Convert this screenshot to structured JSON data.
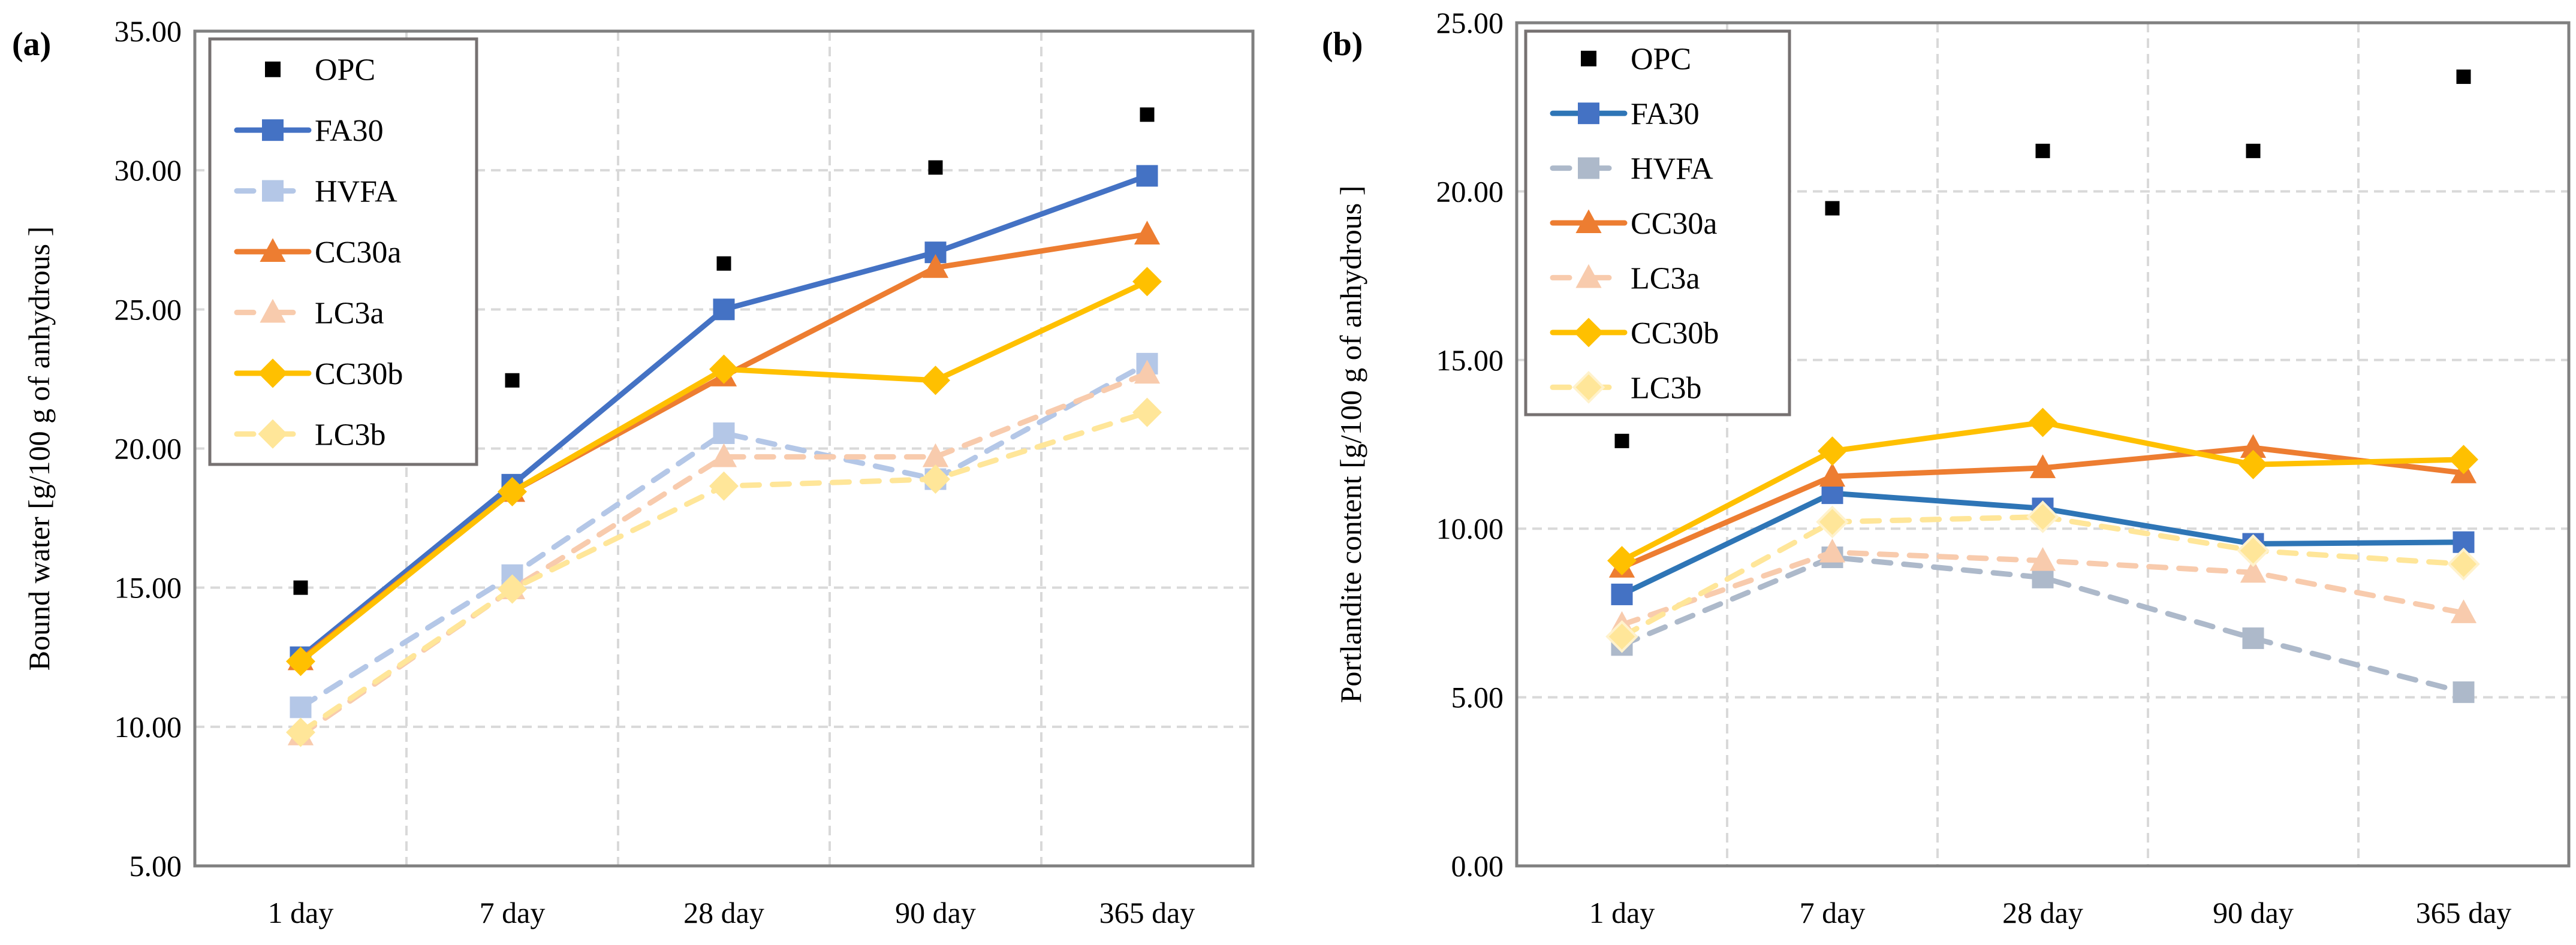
{
  "chart_data": [
    {
      "type": "line",
      "panel_label": "(a)",
      "title": "",
      "xlabel": "",
      "ylabel": "Bound water [g/100  g of anhydrous ]",
      "ylim": [
        5,
        35
      ],
      "yticks": [
        5,
        10,
        15,
        20,
        25,
        30,
        35
      ],
      "ytick_labels": [
        "5.00",
        "10.00",
        "15.00",
        "20.00",
        "25.00",
        "30.00",
        "35.00"
      ],
      "grid": true,
      "legend_position": "top-left",
      "categories": [
        "1 day",
        "7 day",
        "28 day",
        "90 day",
        "365 day"
      ],
      "series": [
        {
          "name": "OPC",
          "values": [
            15.0,
            22.45,
            26.65,
            30.1,
            32.0
          ],
          "color": "#000000",
          "marker": "square",
          "line": "none"
        },
        {
          "name": "FA30",
          "values": [
            12.5,
            18.7,
            25.0,
            27.05,
            29.8
          ],
          "color": "#4472C4",
          "marker": "square",
          "line": "solid"
        },
        {
          "name": "HVFA",
          "values": [
            10.7,
            15.45,
            20.55,
            18.9,
            23.05
          ],
          "color": "#B4C7E7",
          "marker": "square",
          "line": "dashed"
        },
        {
          "name": "CC30a",
          "values": [
            12.4,
            18.45,
            22.6,
            26.5,
            27.7
          ],
          "color": "#ED7D31",
          "marker": "triangle",
          "line": "solid"
        },
        {
          "name": "LC3a",
          "values": [
            9.7,
            14.95,
            19.7,
            19.7,
            22.7
          ],
          "color": "#F8CBAD",
          "marker": "triangle",
          "line": "dashed"
        },
        {
          "name": "CC30b",
          "values": [
            12.35,
            18.45,
            22.85,
            22.45,
            26.0
          ],
          "color": "#FFC000",
          "marker": "diamond",
          "line": "solid"
        },
        {
          "name": "LC3b",
          "values": [
            9.8,
            14.95,
            18.65,
            18.9,
            21.3
          ],
          "color": "#FFE699",
          "marker": "diamond",
          "line": "dashed"
        }
      ]
    },
    {
      "type": "line",
      "panel_label": "(b)",
      "title": "",
      "xlabel": "",
      "ylabel": "Portlandite content [g/100  g of anhydrous ]",
      "ylim": [
        0,
        25
      ],
      "yticks": [
        0,
        5,
        10,
        15,
        20,
        25
      ],
      "ytick_labels": [
        "0.00",
        "5.00",
        "10.00",
        "15.00",
        "20.00",
        "25.00"
      ],
      "grid": true,
      "legend_position": "top-left",
      "categories": [
        "1 day",
        "7 day",
        "28 day",
        "90 day",
        "365 day"
      ],
      "series": [
        {
          "name": "OPC",
          "values": [
            12.6,
            19.5,
            21.2,
            21.2,
            23.4
          ],
          "color": "#000000",
          "marker": "square",
          "line": "none"
        },
        {
          "name": "FA30",
          "values": [
            8.05,
            11.05,
            10.6,
            9.55,
            9.6
          ],
          "color": "#2E75B6",
          "marker_color": "#4472C4",
          "marker": "square",
          "line": "solid"
        },
        {
          "name": "HVFA",
          "values": [
            6.55,
            9.15,
            8.55,
            6.75,
            5.15
          ],
          "color": "#ADB9CA",
          "marker": "square",
          "line": "dashed"
        },
        {
          "name": "CC30a",
          "values": [
            8.85,
            11.55,
            11.8,
            12.4,
            11.65
          ],
          "color": "#ED7D31",
          "marker": "triangle",
          "line": "solid"
        },
        {
          "name": "LC3a",
          "values": [
            7.15,
            9.3,
            9.05,
            8.7,
            7.5
          ],
          "color": "#F8CBAD",
          "marker": "triangle",
          "line": "dashed"
        },
        {
          "name": "CC30b",
          "values": [
            9.05,
            12.3,
            13.15,
            11.9,
            12.05
          ],
          "color": "#FFC000",
          "marker": "diamond",
          "line": "solid"
        },
        {
          "name": "LC3b",
          "values": [
            6.8,
            10.2,
            10.35,
            9.35,
            8.95
          ],
          "color": "#FFE699",
          "marker": "diamond",
          "line": "dashed"
        }
      ]
    }
  ]
}
